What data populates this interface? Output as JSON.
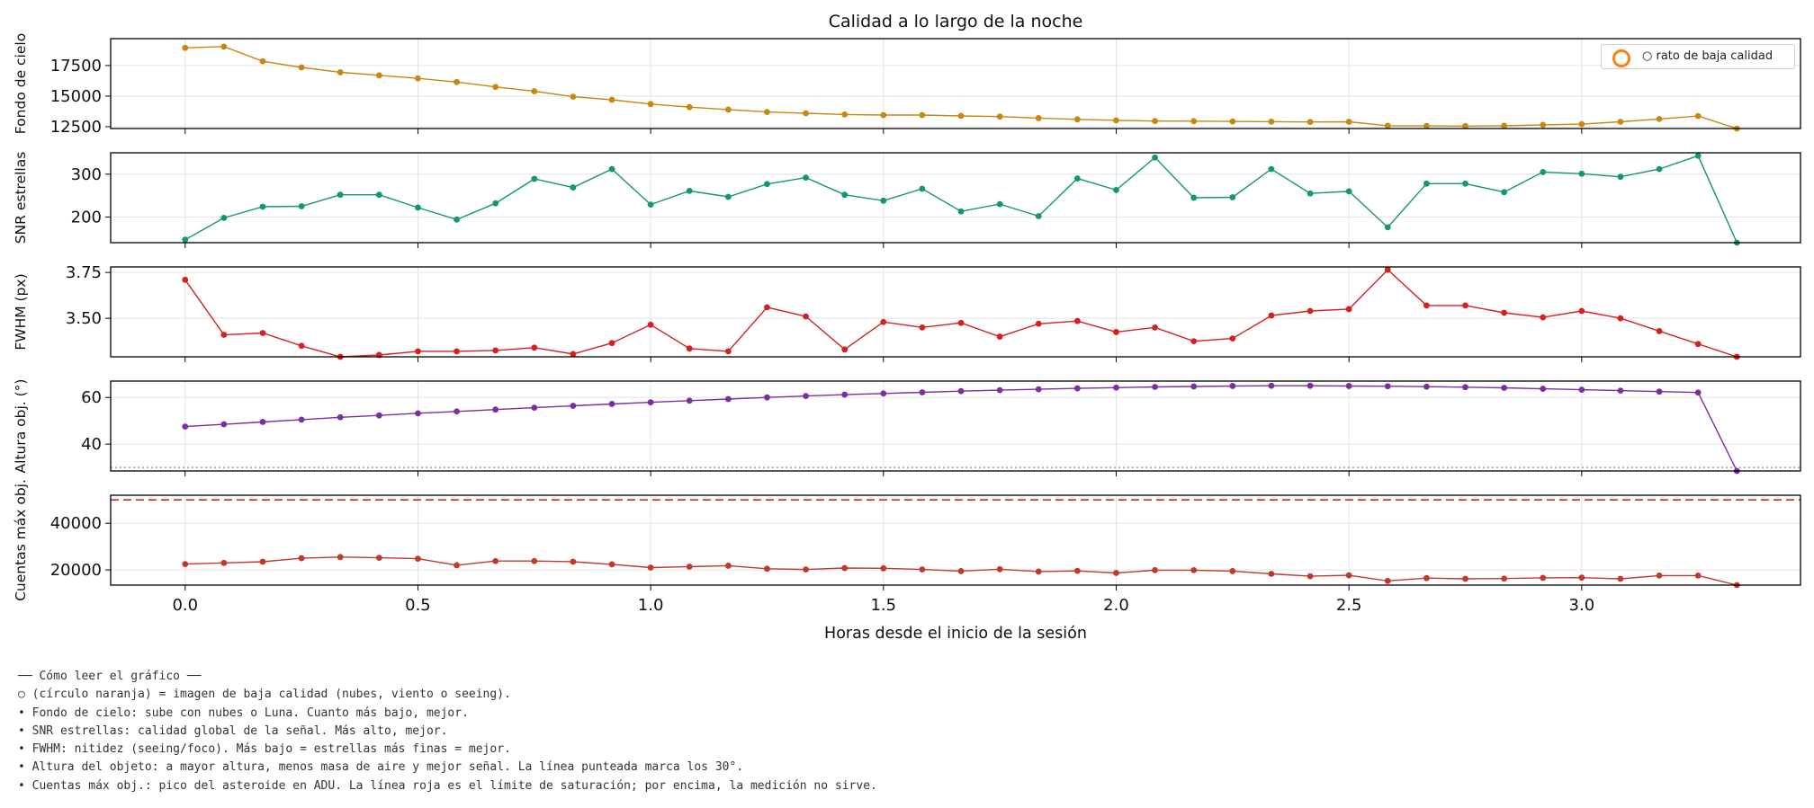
{
  "chart_data": {
    "type": "line",
    "title": "Calidad a lo largo de la noche",
    "xlabel": "Horas desde el inicio de la sesión",
    "xlim": [
      -0.16,
      3.47
    ],
    "x_ticks": [
      0.0,
      0.5,
      1.0,
      1.5,
      2.0,
      2.5,
      3.0
    ],
    "x_tick_labels": [
      "0.0",
      "0.5",
      "1.0",
      "1.5",
      "2.0",
      "2.5",
      "3.0"
    ],
    "grid": true,
    "x": [
      0,
      0.0833,
      0.1667,
      0.25,
      0.3333,
      0.4167,
      0.5,
      0.5833,
      0.6667,
      0.75,
      0.8333,
      0.9167,
      1.0,
      1.0833,
      1.1667,
      1.25,
      1.3333,
      1.4167,
      1.5,
      1.5833,
      1.6667,
      1.75,
      1.8333,
      1.9167,
      2.0,
      2.0833,
      2.1667,
      2.25,
      2.3333,
      2.4167,
      2.5,
      2.5833,
      2.6667,
      2.75,
      2.8333,
      2.9167,
      3.0,
      3.0833,
      3.1667,
      3.25,
      3.3333
    ],
    "panels": [
      {
        "ylabel": "Fondo de cielo",
        "ylim": [
          12350,
          19700
        ],
        "yticks": [
          12500,
          15000,
          17500
        ],
        "ytick_labels": [
          "12500",
          "15000",
          "17500"
        ],
        "color": "#c8870e",
        "values": [
          18950,
          19050,
          17850,
          17350,
          16950,
          16700,
          16450,
          16150,
          15750,
          15400,
          14950,
          14700,
          14350,
          14100,
          13900,
          13700,
          13600,
          13500,
          13450,
          13450,
          13380,
          13330,
          13200,
          13100,
          13020,
          12960,
          12950,
          12930,
          12910,
          12890,
          12900,
          12580,
          12560,
          12550,
          12580,
          12650,
          12710,
          12900,
          13130,
          13370,
          12350
        ]
      },
      {
        "ylabel": "SNR estrellas",
        "ylim": [
          140,
          350
        ],
        "yticks": [
          200,
          300
        ],
        "ytick_labels": [
          "200",
          "300"
        ],
        "color": "#13976f",
        "values": [
          147,
          198,
          224,
          225,
          252,
          252,
          222,
          194,
          232,
          289,
          269,
          312,
          229,
          261,
          247,
          277,
          292,
          252,
          238,
          266,
          213,
          230,
          202,
          290,
          263,
          339,
          245,
          246,
          312,
          255,
          260,
          176,
          278,
          278,
          258,
          305,
          301,
          294,
          312,
          343,
          140
        ]
      },
      {
        "ylabel": "FWHM (px)",
        "ylim": [
          3.29,
          3.78
        ],
        "yticks": [
          3.5,
          3.75
        ],
        "ytick_labels": [
          "3.50",
          "3.75"
        ],
        "color": "#d62020",
        "values": [
          3.71,
          3.41,
          3.42,
          3.35,
          3.28,
          3.3,
          3.32,
          3.32,
          3.325,
          3.34,
          3.305,
          3.365,
          3.465,
          3.335,
          3.32,
          3.56,
          3.51,
          3.33,
          3.48,
          3.45,
          3.475,
          3.4,
          3.47,
          3.485,
          3.425,
          3.45,
          3.375,
          3.39,
          3.515,
          3.54,
          3.55,
          3.765,
          3.57,
          3.57,
          3.53,
          3.505,
          3.54,
          3.5,
          3.43,
          3.36,
          3.29
        ]
      },
      {
        "ylabel": "Altura obj. (°)",
        "ylim": [
          28.5,
          67
        ],
        "yticks": [
          40,
          60
        ],
        "ytick_labels": [
          "40",
          "60"
        ],
        "color": "#7b2fa0",
        "reference_line": {
          "value": 30,
          "color": "#888888",
          "style": "dotted"
        },
        "values": [
          47.5,
          48.5,
          49.5,
          50.5,
          51.5,
          52.3,
          53.2,
          54,
          54.8,
          55.6,
          56.4,
          57.2,
          57.9,
          58.6,
          59.3,
          60,
          60.6,
          61.2,
          61.7,
          62.2,
          62.7,
          63.1,
          63.5,
          63.9,
          64.2,
          64.5,
          64.7,
          64.9,
          65,
          65,
          64.9,
          64.8,
          64.6,
          64.4,
          64.1,
          63.7,
          63.3,
          62.9,
          62.5,
          62.1,
          28.5
        ]
      },
      {
        "ylabel": "Cuentas máx obj.",
        "ylim": [
          13500,
          52000
        ],
        "yticks": [
          20000,
          40000
        ],
        "ytick_labels": [
          "20000",
          "40000"
        ],
        "color": "#c0392b",
        "reference_line": {
          "value": 50000,
          "color": "#d62728",
          "style": "dashed"
        },
        "values": [
          22500,
          23000,
          23500,
          25000,
          25500,
          25200,
          24800,
          22000,
          23800,
          23800,
          23500,
          22400,
          21000,
          21400,
          21800,
          20500,
          20200,
          20800,
          20700,
          20200,
          19500,
          20300,
          19300,
          19600,
          18700,
          19900,
          19900,
          19500,
          18300,
          17300,
          17700,
          15300,
          16500,
          16200,
          16300,
          16600,
          16700,
          16200,
          17600,
          17600,
          13500
        ]
      }
    ],
    "legend": {
      "placement": "top-right",
      "label": "○ rato de baja calidad",
      "marker": "orange open circle",
      "marker_color": "#ff7f0e"
    }
  },
  "notes": {
    "lines": [
      "── Cómo leer el gráfico ──",
      "○ (círculo naranja) = imagen de baja calidad (nubes, viento o seeing).",
      "• Fondo de cielo: sube con nubes o Luna. Cuanto más bajo, mejor.",
      "• SNR estrellas: calidad global de la señal. Más alto, mejor.",
      "• FWHM: nitidez (seeing/foco). Más bajo = estrellas más finas = mejor.",
      "• Altura del objeto: a mayor altura, menos masa de aire y mejor señal. La línea punteada marca los 30°.",
      "• Cuentas máx obj.: pico del asteroide en ADU. La línea roja es el límite de saturación; por encima, la medición no sirve."
    ]
  }
}
